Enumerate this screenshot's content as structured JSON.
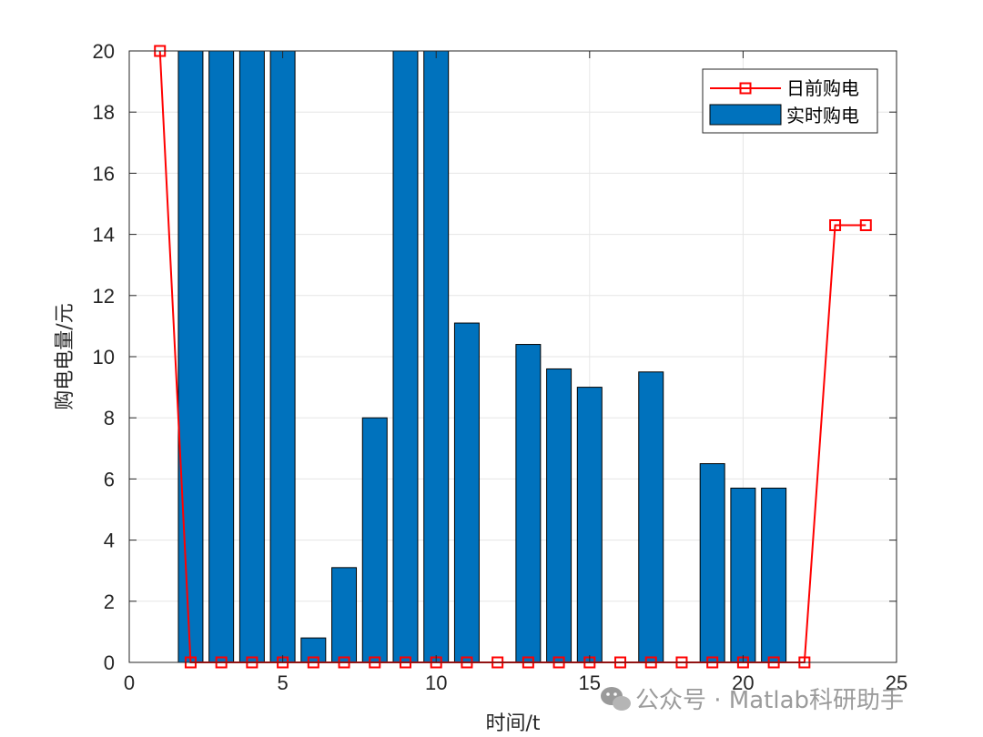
{
  "chart_data": {
    "type": "bar",
    "title": "",
    "xlabel": "时间/t",
    "ylabel": "购电电量/元",
    "xlim": [
      0,
      25
    ],
    "ylim": [
      0,
      20
    ],
    "xticks": [
      0,
      5,
      10,
      15,
      20,
      25
    ],
    "yticks": [
      0,
      2,
      4,
      6,
      8,
      10,
      12,
      14,
      16,
      18,
      20
    ],
    "grid": true,
    "legend_position": "top-right",
    "line_series": {
      "name": "日前购电",
      "type": "line",
      "marker": "square",
      "color": "#ff0000",
      "x": [
        1,
        2,
        3,
        4,
        5,
        6,
        7,
        8,
        9,
        10,
        11,
        12,
        13,
        14,
        15,
        16,
        17,
        18,
        19,
        20,
        21,
        22,
        23,
        24
      ],
      "y": [
        20,
        0,
        0,
        0,
        0,
        0,
        0,
        0,
        0,
        0,
        0,
        0,
        0,
        0,
        0,
        0,
        0,
        0,
        0,
        0,
        0,
        0,
        14.3,
        14.3
      ]
    },
    "bar_series": {
      "name": "实时购电",
      "type": "bar",
      "color": "#0072bd",
      "x": [
        2,
        3,
        4,
        5,
        6,
        7,
        8,
        9,
        10,
        11,
        12,
        13,
        14,
        15,
        16,
        17,
        18,
        19,
        20,
        21
      ],
      "y": [
        20,
        20,
        20,
        20,
        0.8,
        3.1,
        8.0,
        20,
        20,
        11.1,
        0,
        10.4,
        9.6,
        9.0,
        0,
        9.5,
        0,
        6.5,
        5.7,
        5.7
      ]
    }
  },
  "watermark": {
    "text": "公众号 · Matlab科研助手",
    "icon": "wechat-icon"
  }
}
